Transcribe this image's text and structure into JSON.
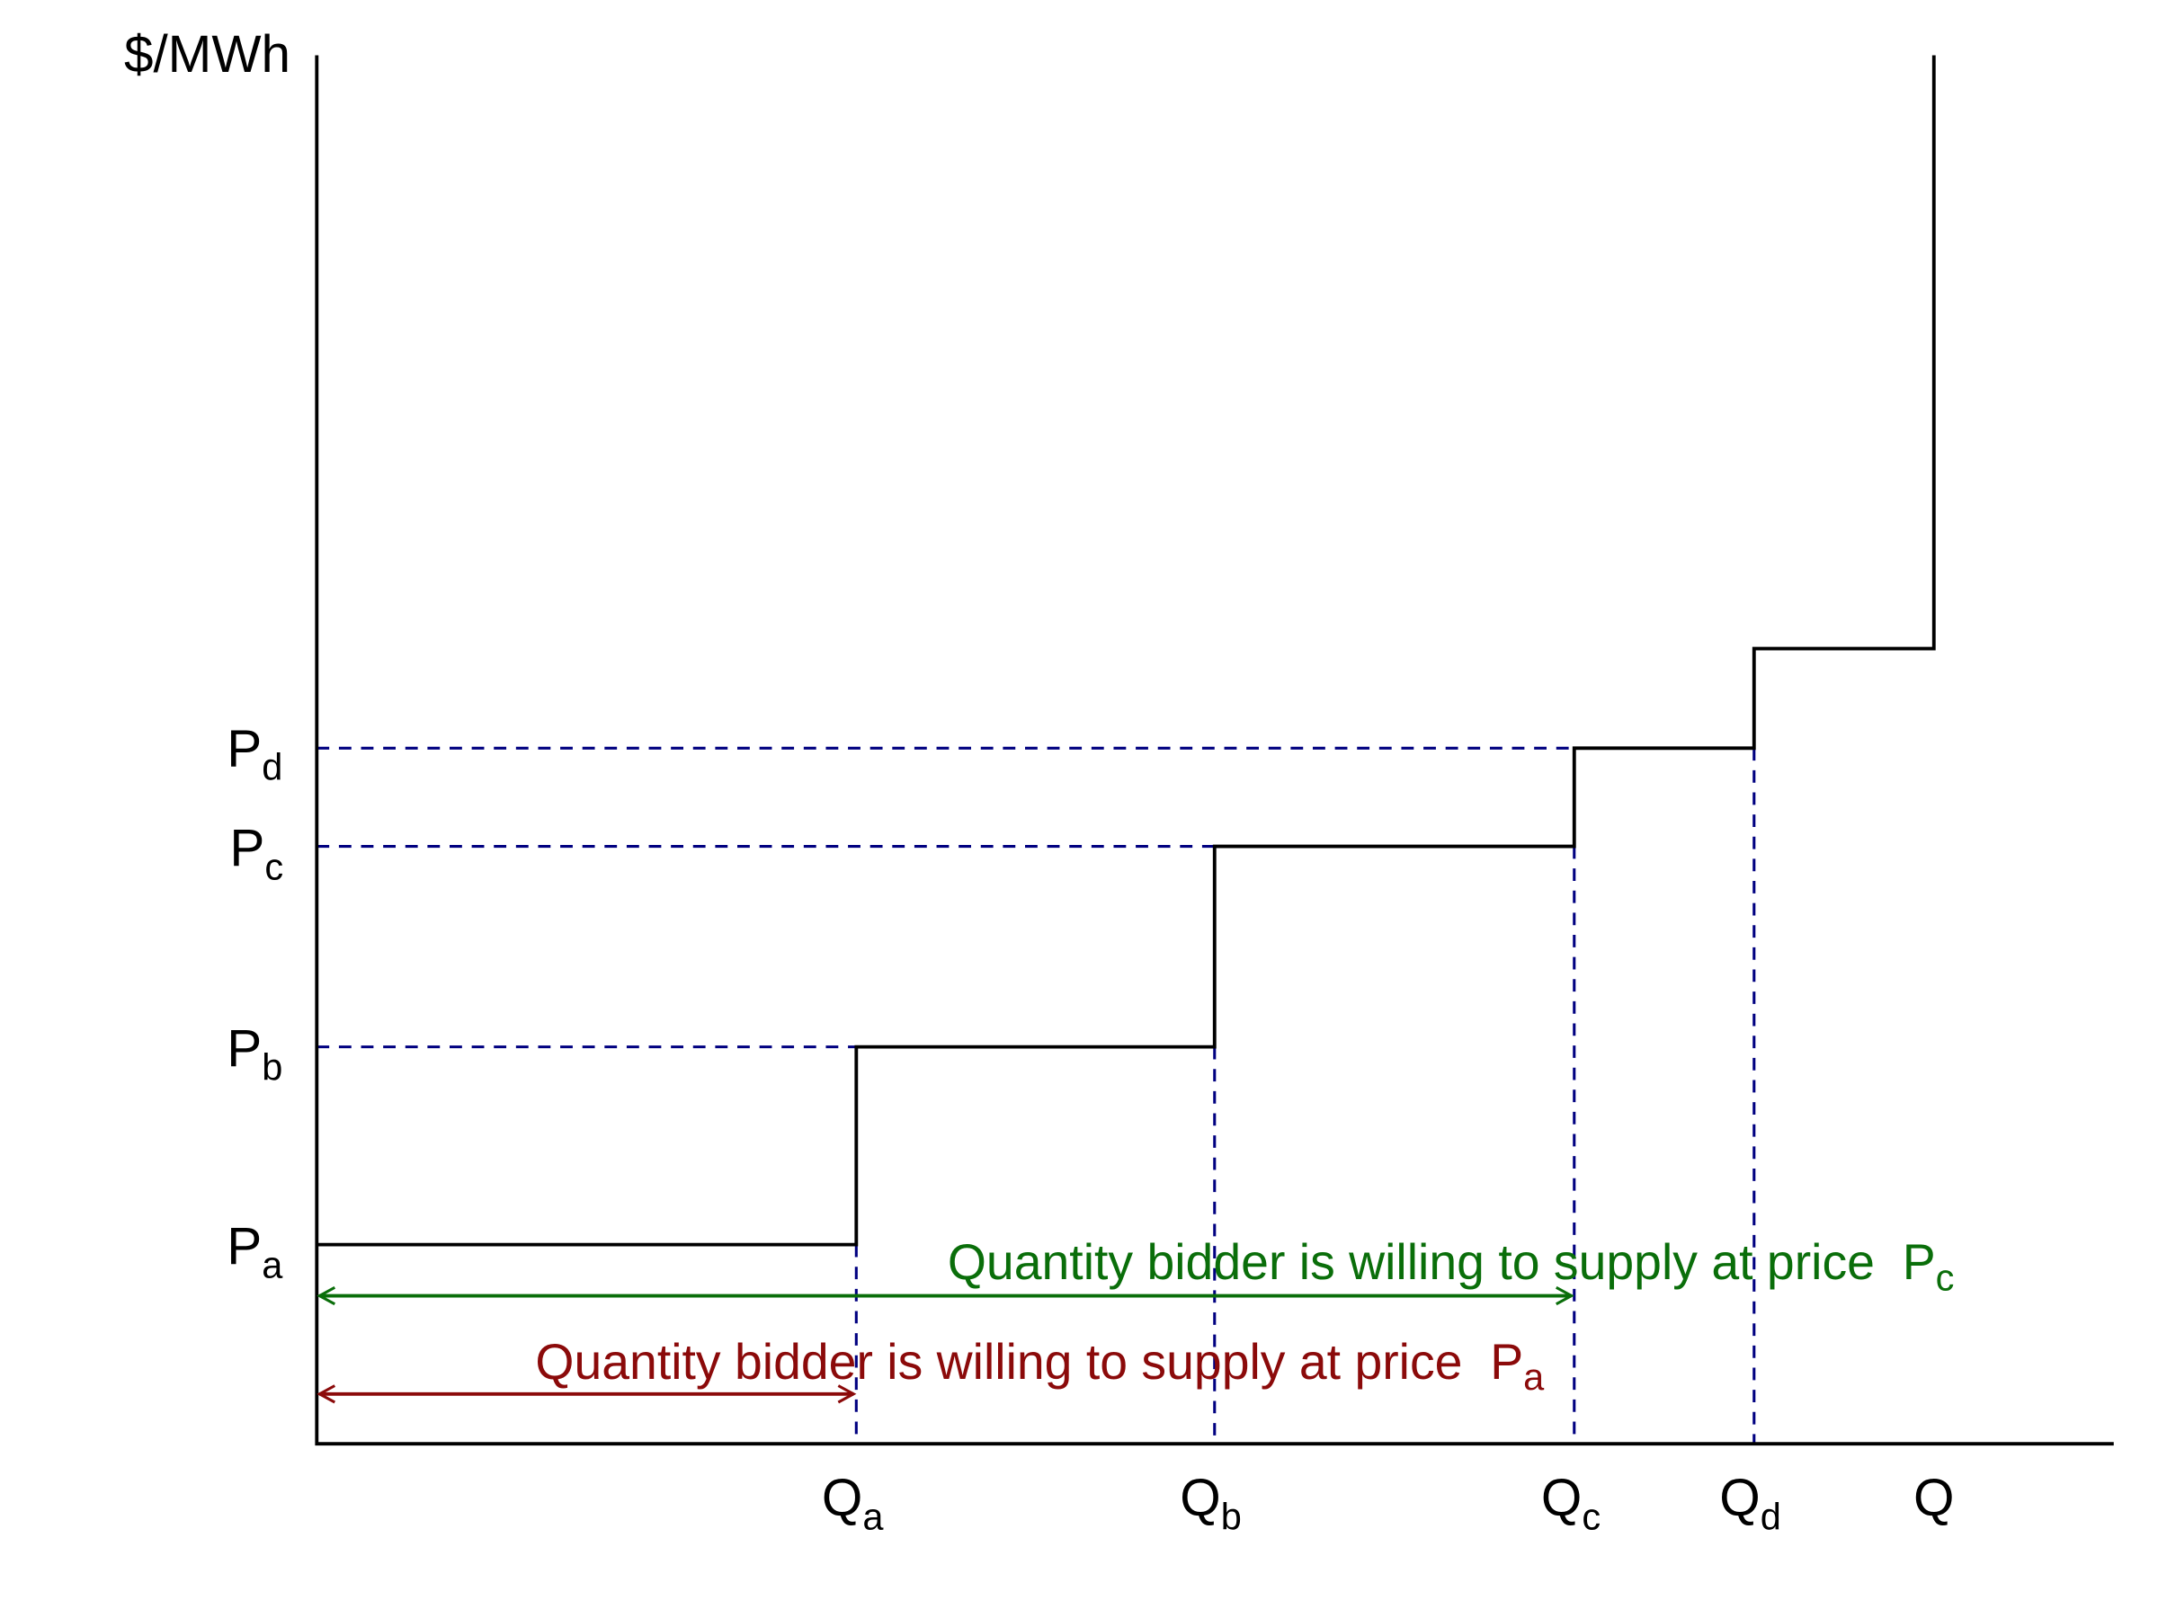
{
  "axis": {
    "y_label": "$/MWh",
    "x_end_label": "Q"
  },
  "price_levels": [
    {
      "symbol": "P",
      "subscript": "a"
    },
    {
      "symbol": "P",
      "subscript": "b"
    },
    {
      "symbol": "P",
      "subscript": "c"
    },
    {
      "symbol": "P",
      "subscript": "d"
    }
  ],
  "quantity_levels": [
    {
      "symbol": "Q",
      "subscript": "a"
    },
    {
      "symbol": "Q",
      "subscript": "b"
    },
    {
      "symbol": "Q",
      "subscript": "c"
    },
    {
      "symbol": "Q",
      "subscript": "d"
    }
  ],
  "annotations": [
    {
      "text": "Quantity bidder is willing to supply at price",
      "symbol": "P",
      "subscript": "c",
      "color": "#0a6e0a"
    },
    {
      "text": "Quantity bidder is willing to supply at price",
      "symbol": "P",
      "subscript": "a",
      "color": "#8b0a0a"
    }
  ]
}
